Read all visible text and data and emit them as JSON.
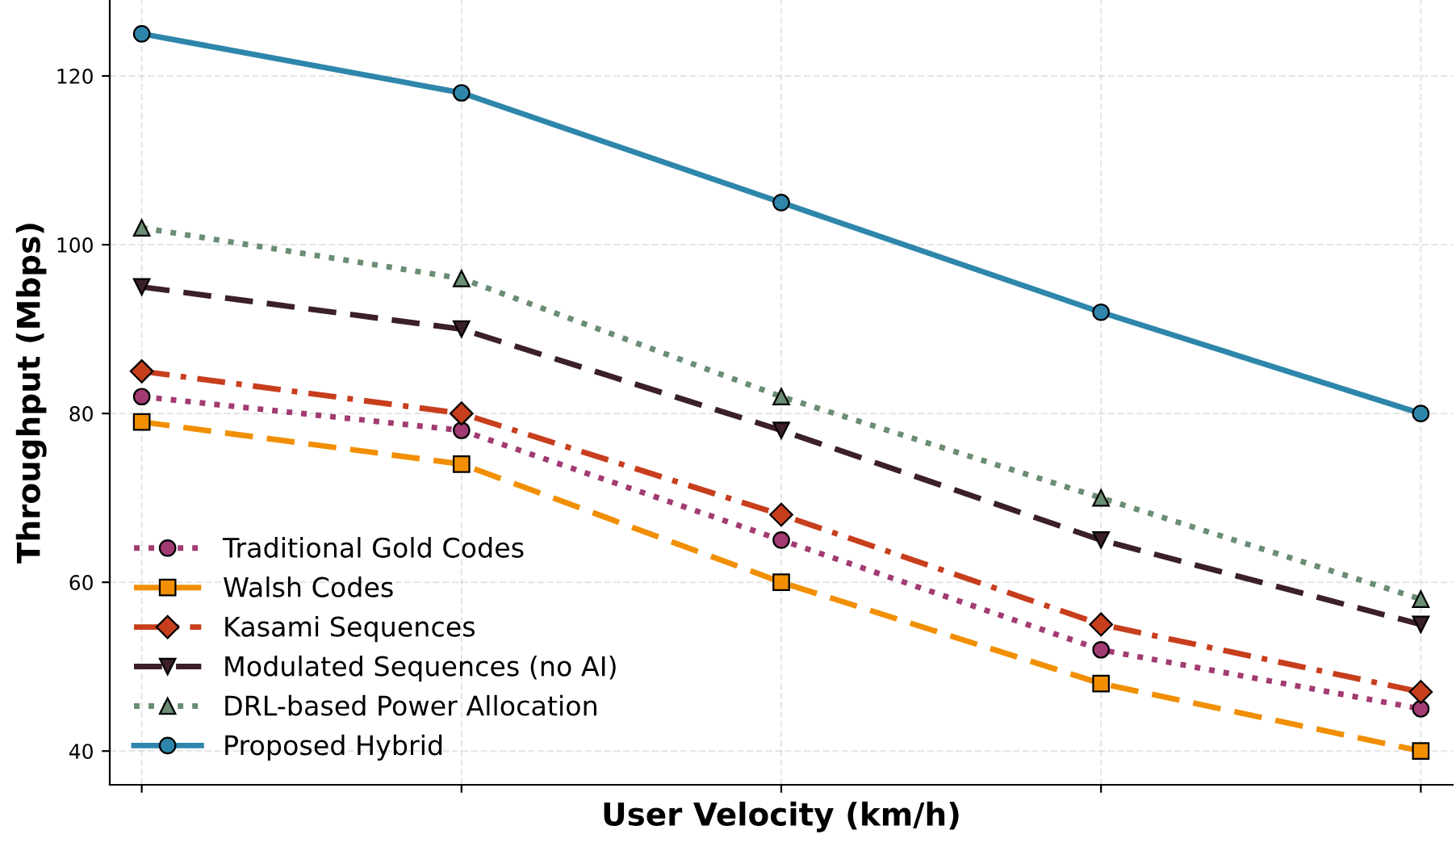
{
  "chart_data": {
    "type": "line",
    "xlabel": "User Velocity (km/h)",
    "ylabel": "Throughput (Mbps)",
    "categories": [
      null,
      null,
      null,
      null,
      null
    ],
    "ylim": [
      36,
      129
    ],
    "yticks": [
      40,
      60,
      80,
      100,
      120
    ],
    "grid": true,
    "legend": "bottom left",
    "tick_labels": "y",
    "series": [
      {
        "name": "Traditional Gold Codes",
        "color": "#a23b72",
        "values": [
          82,
          78,
          65,
          52,
          45
        ],
        "marker": "circle",
        "line_style": "dotted"
      },
      {
        "name": "Walsh Codes",
        "color": "#f18f01",
        "values": [
          79,
          74,
          60,
          48,
          40
        ],
        "marker": "square",
        "line_style": "dashed"
      },
      {
        "name": "Kasami Sequences",
        "color": "#c73e1d",
        "values": [
          85,
          80,
          68,
          55,
          47
        ],
        "marker": "diamond",
        "line_style": "dashdot"
      },
      {
        "name": "Modulated Sequences (no AI)",
        "color": "#3b1f2b",
        "values": [
          95,
          90,
          78,
          65,
          55
        ],
        "marker": "triangle_down",
        "line_style": "dashed"
      },
      {
        "name": "DRL-based Power Allocation",
        "color": "#6a8d73",
        "values": [
          102,
          96,
          82,
          70,
          58
        ],
        "marker": "triangle",
        "line_style": "dotted"
      },
      {
        "name": "Proposed Hybrid",
        "color": "#2e86ab",
        "values": [
          125,
          118,
          105,
          92,
          80
        ],
        "marker": "circle",
        "line_style": "solid"
      }
    ]
  }
}
